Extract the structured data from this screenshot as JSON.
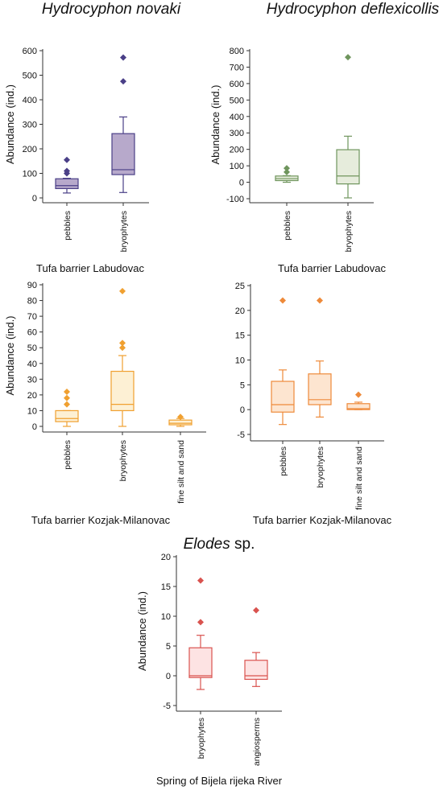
{
  "species_titles": [
    {
      "italic": "Hydrocyphon novaki",
      "plain": ""
    },
    {
      "italic": "Hydrocyphon deflexicollis",
      "plain": ""
    },
    {
      "italic": "Elodes",
      "plain": " sp."
    }
  ],
  "chart_data": [
    {
      "type": "box",
      "species": "Hydrocyphon novaki",
      "site": "Tufa barrier Labudovac",
      "ylabel": "Abundance (ind.)",
      "ylim": [
        0,
        600
      ],
      "yticks": [
        0,
        100,
        200,
        300,
        400,
        500,
        600
      ],
      "color": "#4a3f87",
      "fill": "#b7a9cb",
      "categories": [
        "pebbles",
        "bryophytes"
      ],
      "boxes": [
        {
          "whisker_low": 20,
          "q1": 38,
          "median": 50,
          "q3": 78,
          "whisker_high": 80,
          "outliers": [
            100,
            110,
            155
          ]
        },
        {
          "whisker_low": 22,
          "q1": 95,
          "median": 115,
          "q3": 262,
          "whisker_high": 330,
          "outliers": [
            475,
            572
          ]
        }
      ]
    },
    {
      "type": "box",
      "species": "Hydrocyphon deflexicollis",
      "site": "Tufa barrier Labudovac",
      "ylabel": "Abundance (ind.)",
      "ylim": [
        -100,
        800
      ],
      "yticks": [
        -100,
        0,
        100,
        200,
        300,
        400,
        500,
        600,
        700,
        800
      ],
      "color": "#6f955d",
      "fill": "#e6ecdc",
      "categories": [
        "pebbles",
        "bryophytes"
      ],
      "boxes": [
        {
          "whisker_low": 0,
          "q1": 10,
          "median": 22,
          "q3": 38,
          "whisker_high": 40,
          "outliers": [
            62,
            85
          ]
        },
        {
          "whisker_low": -95,
          "q1": -10,
          "median": 38,
          "q3": 198,
          "whisker_high": 280,
          "outliers": [
            760
          ]
        }
      ]
    },
    {
      "type": "box",
      "species": "Hydrocyphon novaki",
      "site": "Tufa barrier Kozjak-Milanovac",
      "ylabel": "Abundance (ind.)",
      "ylim": [
        0,
        90
      ],
      "yticks": [
        0,
        10,
        20,
        30,
        40,
        50,
        60,
        70,
        80,
        90
      ],
      "color": "#f0a030",
      "fill": "#fdf0d4",
      "categories": [
        "pebbles",
        "bryophytes",
        "fine silt and sand"
      ],
      "boxes": [
        {
          "whisker_low": 0,
          "q1": 3,
          "median": 5,
          "q3": 10,
          "whisker_high": 10,
          "outliers": [
            14,
            18,
            22
          ]
        },
        {
          "whisker_low": 0,
          "q1": 10,
          "median": 14,
          "q3": 35,
          "whisker_high": 45,
          "outliers": [
            50,
            53,
            86
          ]
        },
        {
          "whisker_low": 0,
          "q1": 1,
          "median": 2,
          "q3": 4,
          "whisker_high": 5,
          "outliers": [
            6
          ]
        }
      ]
    },
    {
      "type": "box",
      "species": "Hydrocyphon deflexicollis",
      "site": "Tufa barrier Kozjak-Milanovac",
      "ylabel": "",
      "ylim": [
        -5,
        25
      ],
      "yticks": [
        -5,
        0,
        5,
        10,
        15,
        20,
        25
      ],
      "color": "#ee8a3a",
      "fill": "#fde5d0",
      "categories": [
        "pebbles",
        "bryophytes",
        "fine silt and sand"
      ],
      "boxes": [
        {
          "whisker_low": -3,
          "q1": -0.5,
          "median": 1,
          "q3": 5.7,
          "whisker_high": 8,
          "outliers": [
            22
          ]
        },
        {
          "whisker_low": -1.5,
          "q1": 1,
          "median": 2,
          "q3": 7.2,
          "whisker_high": 9.8,
          "outliers": [
            22
          ]
        },
        {
          "whisker_low": 0,
          "q1": 0,
          "median": 0.2,
          "q3": 1.2,
          "whisker_high": 1.5,
          "outliers": [
            3
          ]
        }
      ]
    },
    {
      "type": "box",
      "species": "Elodes sp.",
      "site": "Spring of Bijela rijeka River",
      "ylabel": "Abundance (ind.)",
      "ylim": [
        -5,
        20
      ],
      "yticks": [
        -5,
        0,
        5,
        10,
        15,
        20
      ],
      "color": "#d9534f",
      "fill": "#fde3e3",
      "categories": [
        "bryophytes",
        "angiosperms"
      ],
      "boxes": [
        {
          "whisker_low": -2.3,
          "q1": -0.3,
          "median": 0,
          "q3": 4.7,
          "whisker_high": 6.8,
          "outliers": [
            9,
            16
          ]
        },
        {
          "whisker_low": -1.8,
          "q1": -0.6,
          "median": 0,
          "q3": 2.6,
          "whisker_high": 3.9,
          "outliers": [
            11
          ]
        }
      ]
    }
  ]
}
